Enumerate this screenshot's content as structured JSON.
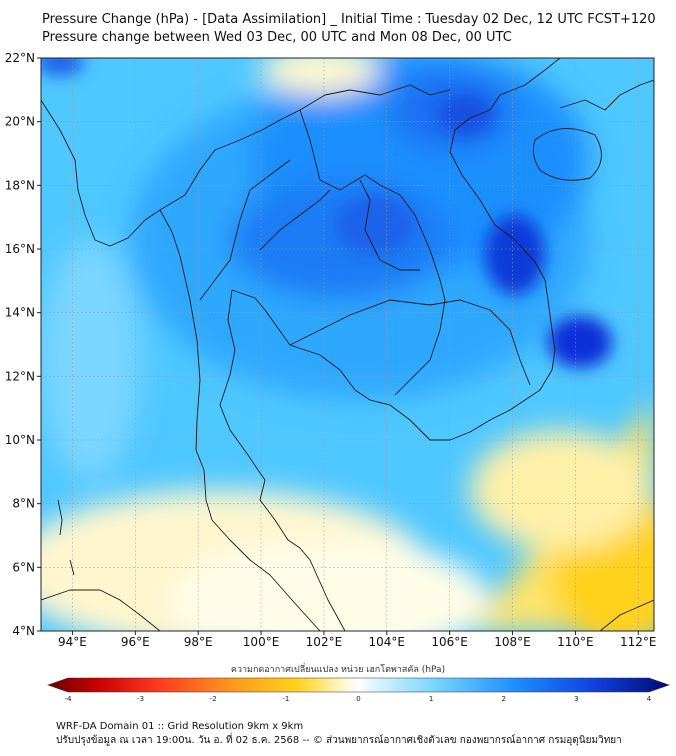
{
  "header": {
    "title_line1": "Pressure Change (hPa) - [Data Assimilation] _ Initial Time : Tuesday 02 Dec, 12 UTC FCST+120",
    "title_line2": "Pressure change between Wed 03 Dec, 00 UTC and Mon 08 Dec, 00 UTC"
  },
  "map": {
    "lon_range": [
      93,
      112.5
    ],
    "lat_range": [
      4,
      22
    ],
    "x_ticks": [
      {
        "value": 94,
        "label": "94°E"
      },
      {
        "value": 96,
        "label": "96°E"
      },
      {
        "value": 98,
        "label": "98°E"
      },
      {
        "value": 100,
        "label": "100°E"
      },
      {
        "value": 102,
        "label": "102°E"
      },
      {
        "value": 104,
        "label": "104°E"
      },
      {
        "value": 106,
        "label": "106°E"
      },
      {
        "value": 108,
        "label": "108°E"
      },
      {
        "value": 110,
        "label": "110°E"
      },
      {
        "value": 112,
        "label": "112°E"
      }
    ],
    "y_ticks": [
      {
        "value": 22,
        "label": "22°N"
      },
      {
        "value": 20,
        "label": "20°N"
      },
      {
        "value": 18,
        "label": "18°N"
      },
      {
        "value": 16,
        "label": "16°N"
      },
      {
        "value": 14,
        "label": "14°N"
      },
      {
        "value": 12,
        "label": "12°N"
      },
      {
        "value": 10,
        "label": "10°N"
      },
      {
        "value": 8,
        "label": "8°N"
      },
      {
        "value": 6,
        "label": "6°N"
      },
      {
        "value": 4,
        "label": "4°N"
      }
    ],
    "colors": {
      "neg_yellow": "#ffd21a",
      "pos_blue": "#1e90ff",
      "deep_blue": "#0a2fd8",
      "border": "#1a1a1a"
    }
  },
  "colorbar": {
    "title": "ความกดอากาศเปลี่ยนแปลง หน่วย เฮกโตพาสคัล (hPa)",
    "min": -4,
    "max": 4,
    "tick_labels": [
      "-4",
      "-3",
      "-2",
      "-1",
      "0",
      "1",
      "2",
      "3",
      "4"
    ]
  },
  "footer": {
    "line1": "WRF-DA Domain 01 :: Grid Resolution 9km x 9km",
    "line2": "ปรับปรุงข้อมูล ณ เวลา 19:00น. วัน อ. ที่ 02 ธ.ค. 2568 -- © ส่วนพยากรณ์อากาศเชิงตัวเลข กองพยากรณ์อากาศ กรมอุตุนิยมวิทยา"
  }
}
